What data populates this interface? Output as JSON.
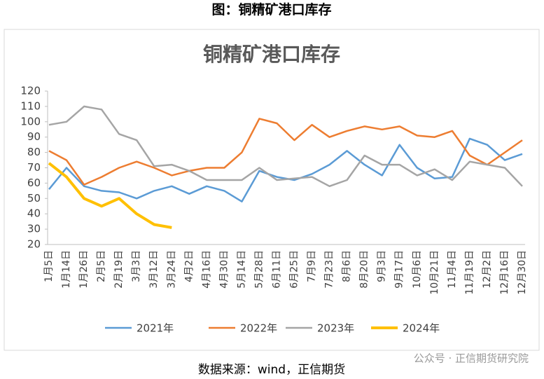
{
  "header": {
    "title": "图：铜精矿港口库存"
  },
  "chart_data": {
    "type": "line",
    "title": "铜精矿港口库存",
    "categories": [
      "1月5日",
      "1月14日",
      "1月26日",
      "2月5日",
      "2月19日",
      "3月3日",
      "3月12日",
      "3月24日",
      "4月2日",
      "4月16日",
      "4月30日",
      "5月14日",
      "5月28日",
      "6月11日",
      "6月25日",
      "7月9日",
      "7月23日",
      "8月6日",
      "8月20日",
      "9月3日",
      "9月17日",
      "10月6日",
      "10月21日",
      "11月4日",
      "11月19日",
      "12月2日",
      "12月16日",
      "12月30日"
    ],
    "series": [
      {
        "name": "2021年",
        "color": "#5b9bd5",
        "values": [
          56,
          70,
          58,
          55,
          54,
          50,
          55,
          58,
          53,
          58,
          55,
          48,
          68,
          64,
          62,
          66,
          72,
          81,
          72,
          65,
          85,
          70,
          63,
          64,
          89,
          85,
          75,
          79
        ]
      },
      {
        "name": "2022年",
        "color": "#ed7d31",
        "values": [
          81,
          75,
          59,
          64,
          70,
          74,
          70,
          65,
          68,
          70,
          70,
          80,
          102,
          99,
          88,
          98,
          90,
          94,
          97,
          95,
          97,
          91,
          90,
          94,
          78,
          72,
          80,
          88
        ]
      },
      {
        "name": "2023年",
        "color": "#a5a5a5",
        "values": [
          98,
          100,
          110,
          108,
          92,
          88,
          71,
          72,
          68,
          62,
          62,
          62,
          70,
          62,
          63,
          64,
          58,
          62,
          78,
          72,
          72,
          65,
          69,
          62,
          74,
          72,
          70,
          58
        ]
      },
      {
        "name": "2024年",
        "color": "#ffc000",
        "values": [
          73,
          64,
          50,
          45,
          50,
          40,
          33,
          31,
          null,
          null,
          null,
          null,
          null,
          null,
          null,
          null,
          null,
          null,
          null,
          null,
          null,
          null,
          null,
          null,
          null,
          null,
          null,
          null
        ]
      }
    ],
    "ylim": [
      20,
      120
    ],
    "yticks": [
      20,
      30,
      40,
      50,
      60,
      70,
      80,
      90,
      100,
      110,
      120
    ],
    "grid": false,
    "legend": "bottom"
  },
  "watermark": "公众号 · 正信期货研究院",
  "source": "数据来源：wind，正信期货"
}
